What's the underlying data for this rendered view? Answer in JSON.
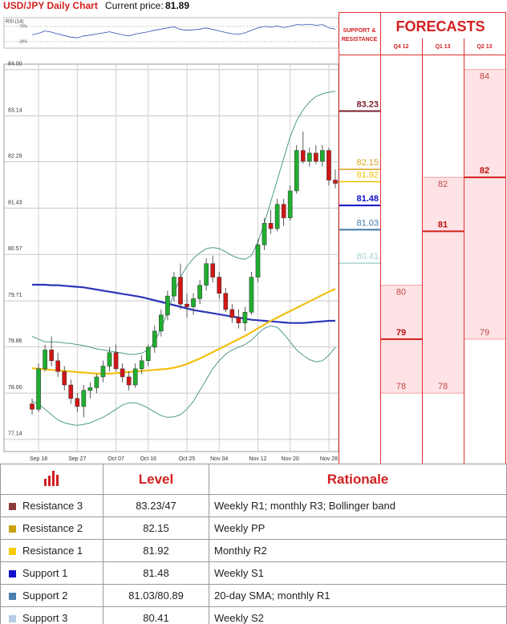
{
  "header": {
    "title": "USD/JPY Daily Chart",
    "price_label": "Current price:",
    "price": 81.89
  },
  "chart_data": [
    {
      "type": "candlestick",
      "categories": [
        null,
        "Sep 18",
        null,
        null,
        null,
        null,
        null,
        "Sep 27",
        null,
        null,
        null,
        null,
        null,
        "Oct 07",
        null,
        null,
        null,
        null,
        "Oct 16",
        null,
        null,
        null,
        null,
        null,
        "Oct 25",
        null,
        null,
        null,
        null,
        "Nov 04",
        null,
        null,
        null,
        null,
        null,
        "Nov 12",
        null,
        null,
        null,
        null,
        "Nov 20",
        null,
        null,
        null,
        null,
        null,
        "Nov 28",
        null
      ],
      "open": [
        77.8,
        77.7,
        78.45,
        78.8,
        78.6,
        78.4,
        78.15,
        77.9,
        77.75,
        78.05,
        78.1,
        78.3,
        78.5,
        78.75,
        78.45,
        78.3,
        78.15,
        78.45,
        78.6,
        78.85,
        79.15,
        79.45,
        79.8,
        80.15,
        79.65,
        79.6,
        79.75,
        80.0,
        80.4,
        80.15,
        79.85,
        79.55,
        79.4,
        79.3,
        79.5,
        80.15,
        80.75,
        81.15,
        81.05,
        81.5,
        81.25,
        81.75,
        82.5,
        82.3,
        82.45,
        82.3,
        82.5,
        81.95
      ],
      "high": [
        77.9,
        78.55,
        78.9,
        79.05,
        78.75,
        78.5,
        78.25,
        78.0,
        78.15,
        78.2,
        78.35,
        78.6,
        78.85,
        78.9,
        78.55,
        78.4,
        78.55,
        78.7,
        78.9,
        79.25,
        79.55,
        79.9,
        80.25,
        80.4,
        79.85,
        79.85,
        80.1,
        80.5,
        80.55,
        80.25,
        79.95,
        79.65,
        79.55,
        79.6,
        80.25,
        80.85,
        81.25,
        81.4,
        81.6,
        81.6,
        81.85,
        82.6,
        82.85,
        82.55,
        82.6,
        82.6,
        82.55,
        82.15
      ],
      "low": [
        77.6,
        77.65,
        78.4,
        78.5,
        78.3,
        78.05,
        77.8,
        77.65,
        77.55,
        77.9,
        78.0,
        78.2,
        78.4,
        78.4,
        78.2,
        78.05,
        78.1,
        78.35,
        78.5,
        78.75,
        79.05,
        79.35,
        79.7,
        79.55,
        79.4,
        79.45,
        79.65,
        79.9,
        80.05,
        79.75,
        79.5,
        79.3,
        79.2,
        79.15,
        79.45,
        80.05,
        80.65,
        80.95,
        81.0,
        81.1,
        81.2,
        81.7,
        82.25,
        82.2,
        82.25,
        82.2,
        81.85,
        81.8
      ],
      "close": [
        77.7,
        78.45,
        78.8,
        78.6,
        78.4,
        78.15,
        77.9,
        77.75,
        78.05,
        78.1,
        78.3,
        78.5,
        78.75,
        78.45,
        78.3,
        78.15,
        78.45,
        78.6,
        78.85,
        79.15,
        79.45,
        79.8,
        80.15,
        79.65,
        79.6,
        79.75,
        80.0,
        80.4,
        80.15,
        79.85,
        79.55,
        79.4,
        79.3,
        79.5,
        80.15,
        80.75,
        81.15,
        81.05,
        81.5,
        81.25,
        81.75,
        82.5,
        82.3,
        82.45,
        82.3,
        82.5,
        81.95,
        81.89
      ],
      "up_color": "#1fae2e",
      "down_color": "#d01616",
      "lines": [
        {
          "color": "#2c35b8",
          "values": [
            80.01,
            80.01,
            80.01,
            80.0,
            80.0,
            79.99,
            79.98,
            79.97,
            79.96,
            79.94,
            79.92,
            79.9,
            79.88,
            79.86,
            79.84,
            79.82,
            79.8,
            79.78,
            79.75,
            79.72,
            79.69,
            79.66,
            79.63,
            79.6,
            79.57,
            79.54,
            79.52,
            79.5,
            79.48,
            79.46,
            79.44,
            79.42,
            79.4,
            79.38,
            79.36,
            79.35,
            79.34,
            79.33,
            79.32,
            79.31,
            79.3,
            79.3,
            79.3,
            79.31,
            79.32,
            79.33,
            79.34,
            79.34
          ]
        },
        {
          "color": "#f2bf10",
          "values": [
            78.46,
            78.45,
            78.44,
            78.43,
            78.42,
            78.41,
            78.4,
            78.39,
            78.38,
            78.37,
            78.36,
            78.36,
            78.36,
            78.37,
            78.38,
            78.39,
            78.4,
            78.41,
            78.42,
            78.43,
            78.44,
            78.45,
            78.47,
            78.5,
            78.54,
            78.59,
            78.64,
            78.7,
            78.76,
            78.82,
            78.88,
            78.94,
            79.0,
            79.06,
            79.13,
            79.2,
            79.27,
            79.34,
            79.4,
            79.46,
            79.52,
            79.58,
            79.64,
            79.7,
            79.76,
            79.82,
            79.88,
            79.93
          ]
        },
        {
          "color": "#4f9a8c",
          "values": [
            79.05,
            79.0,
            78.95,
            78.95,
            78.95,
            78.93,
            78.92,
            78.9,
            78.88,
            78.85,
            78.82,
            78.8,
            78.78,
            78.76,
            78.74,
            78.72,
            78.72,
            78.74,
            78.8,
            78.95,
            79.2,
            79.5,
            79.85,
            80.15,
            80.35,
            80.5,
            80.6,
            80.68,
            80.7,
            80.68,
            80.62,
            80.55,
            80.5,
            80.48,
            80.55,
            80.8,
            81.15,
            81.55,
            81.95,
            82.35,
            82.75,
            83.05,
            83.25,
            83.4,
            83.5,
            83.55,
            83.58,
            83.6
          ]
        },
        {
          "color": "#4f9a8c",
          "values": [
            77.85,
            77.8,
            77.7,
            77.6,
            77.5,
            77.45,
            77.42,
            77.4,
            77.42,
            77.45,
            77.5,
            77.55,
            77.62,
            77.7,
            77.78,
            77.82,
            77.82,
            77.78,
            77.72,
            77.65,
            77.58,
            77.55,
            77.56,
            77.6,
            77.7,
            77.85,
            78.05,
            78.25,
            78.45,
            78.6,
            78.72,
            78.8,
            78.85,
            78.9,
            78.98,
            79.1,
            79.2,
            79.25,
            79.22,
            79.1,
            78.95,
            78.8,
            78.7,
            78.62,
            78.58,
            78.6,
            78.7,
            78.85
          ]
        }
      ],
      "ylim": [
        76.96,
        84.1
      ],
      "yticks": [
        {
          "value": 84.0,
          "label": "84.00"
        },
        {
          "value": 83.14,
          "label": "83.14"
        },
        {
          "value": 82.29,
          "label": "82.29"
        },
        {
          "value": 81.43,
          "label": "81.43"
        },
        {
          "value": 80.57,
          "label": "80.57"
        },
        {
          "value": 79.71,
          "label": "79.71"
        },
        {
          "value": 78.86,
          "label": "78.86"
        },
        {
          "value": 78.0,
          "label": "78.00"
        },
        {
          "value": 77.14,
          "label": "77.14"
        }
      ],
      "grid": true
    },
    {
      "type": "line",
      "title": "RSI (14)",
      "color": "#2f4fb0",
      "values": [
        48,
        52,
        58,
        55,
        50,
        46,
        42,
        40,
        45,
        47,
        50,
        53,
        56,
        52,
        48,
        45,
        50,
        53,
        56,
        60,
        63,
        66,
        69,
        62,
        60,
        61,
        63,
        66,
        62,
        58,
        54,
        51,
        49,
        53,
        60,
        66,
        70,
        68,
        71,
        67,
        70,
        75,
        74,
        76,
        73,
        75,
        66,
        63
      ],
      "ylim": [
        13,
        93
      ],
      "yticks": [
        {
          "value": 70,
          "label": "70%"
        },
        {
          "value": 30,
          "label": "30%"
        }
      ]
    }
  ],
  "support_resistance": {
    "title_lines": [
      "SUPPORT &",
      "RESISTANCE"
    ],
    "levels": [
      {
        "value": 83.23,
        "color": "#7a1f2b"
      },
      {
        "value": 82.15,
        "color": "#d9a21c"
      },
      {
        "value": 81.92,
        "color": "#f0c000"
      },
      {
        "value": 81.48,
        "color": "#1010c8"
      },
      {
        "value": 81.03,
        "color": "#3f78a8"
      },
      {
        "value": 80.41,
        "color": "#a7d3d0"
      }
    ]
  },
  "forecasts": {
    "title": "FORECASTS",
    "columns": [
      {
        "label": "Q4 12",
        "high": 80,
        "mid": 79,
        "low": 78
      },
      {
        "label": "Q1 13",
        "high": 82,
        "mid": 81,
        "low": 78
      },
      {
        "label": "Q2 13",
        "high": 84,
        "mid": 82,
        "low": 79
      }
    ]
  },
  "table": {
    "headers": [
      "Level",
      "Rationale"
    ],
    "rows": [
      {
        "color": "#8b3a3a",
        "name": "Resistance 3",
        "level": "83.23/47",
        "rationale": "Weekly R1; monthly R3; Bollinger band"
      },
      {
        "color": "#c9a012",
        "name": "Resistance 2",
        "level": "82.15",
        "rationale": "Weekly PP"
      },
      {
        "color": "#f5cc00",
        "name": "Resistance 1",
        "level": "81.92",
        "rationale": "Monthly R2"
      },
      {
        "color": "#1010c8",
        "name": "Support 1",
        "level": "81.48",
        "rationale": "Weekly S1"
      },
      {
        "color": "#4a80b0",
        "name": "Support 2",
        "level": "81.03/80.89",
        "rationale": "20-day SMA; monthly R1"
      },
      {
        "color": "#b5cce4",
        "name": "Support 3",
        "level": "80.41",
        "rationale": "Weekly S2"
      }
    ]
  }
}
